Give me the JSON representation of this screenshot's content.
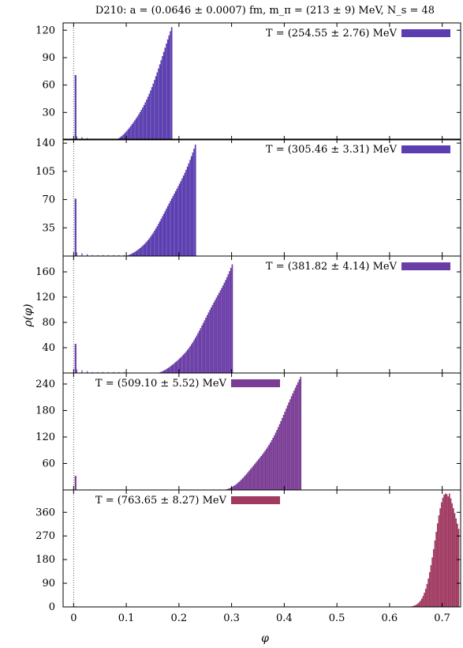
{
  "figure": {
    "title": "D210: a = (0.0646 ± 0.0007) fm, m_π = (213 ± 9) MeV, N_s = 48",
    "xlabel": "φ",
    "ylabel": "ρ(φ)"
  },
  "chart_data": [
    {
      "type": "bar",
      "legend": "T = (254.55 ± 2.76) MeV",
      "legend_placement": "top-right",
      "color": "#5b3fb0",
      "xlim": [
        -0.02,
        0.735
      ],
      "ylim": [
        0,
        128
      ],
      "yticks": [
        30,
        60,
        90,
        120
      ],
      "xticks": [
        0,
        0.1,
        0.2,
        0.3,
        0.4,
        0.5,
        0.6,
        0.7
      ],
      "spike": {
        "x": 0.002,
        "value": 71
      },
      "range": [
        0.0,
        0.185
      ],
      "peak": 124,
      "support": [
        0.075,
        0.185
      ]
    },
    {
      "type": "bar",
      "legend": "T = (305.46 ± 3.31) MeV",
      "legend_placement": "top-right",
      "color": "#5a3db0",
      "xlim": [
        -0.02,
        0.735
      ],
      "ylim": [
        0,
        145
      ],
      "yticks": [
        35,
        70,
        105,
        140
      ],
      "xticks": [
        0,
        0.1,
        0.2,
        0.3,
        0.4,
        0.5,
        0.6,
        0.7
      ],
      "spike": {
        "x": 0.002,
        "value": 71
      },
      "range": [
        0.0,
        0.23
      ],
      "peak": 143,
      "support": [
        0.095,
        0.23
      ]
    },
    {
      "type": "bar",
      "legend": "T = (381.82 ± 4.14) MeV",
      "legend_placement": "top-right",
      "color": "#6a3da6",
      "xlim": [
        -0.02,
        0.735
      ],
      "ylim": [
        0,
        185
      ],
      "yticks": [
        40,
        80,
        120,
        160
      ],
      "xticks": [
        0,
        0.1,
        0.2,
        0.3,
        0.4,
        0.5,
        0.6,
        0.7
      ],
      "spike": {
        "x": 0.002,
        "value": 46
      },
      "range": [
        0.0,
        0.3
      ],
      "peak": 180,
      "support": [
        0.155,
        0.3
      ]
    },
    {
      "type": "bar",
      "legend": "T = (509.10 ± 5.52) MeV",
      "legend_placement": "top-left",
      "color": "#7a3c94",
      "xlim": [
        -0.02,
        0.735
      ],
      "ylim": [
        0,
        265
      ],
      "yticks": [
        60,
        120,
        180,
        240
      ],
      "xticks": [
        0,
        0.1,
        0.2,
        0.3,
        0.4,
        0.5,
        0.6,
        0.7
      ],
      "spike": {
        "x": 0.002,
        "value": 32
      },
      "range": [
        0.0,
        0.43
      ],
      "peak": 262,
      "support": [
        0.28,
        0.43
      ]
    },
    {
      "type": "bar",
      "legend": "T = (763.65 ± 8.27) MeV",
      "legend_placement": "top-left",
      "color": "#a03a60",
      "xlim": [
        -0.02,
        0.735
      ],
      "ylim": [
        0,
        445
      ],
      "yticks": [
        0,
        90,
        180,
        270,
        360
      ],
      "xticks": [
        0,
        0.1,
        0.2,
        0.3,
        0.4,
        0.5,
        0.6,
        0.7
      ],
      "spike": {
        "x": 0.002,
        "value": 2
      },
      "range": [
        0.62,
        0.73
      ],
      "peak": 440,
      "support": [
        0.63,
        0.73
      ]
    }
  ]
}
